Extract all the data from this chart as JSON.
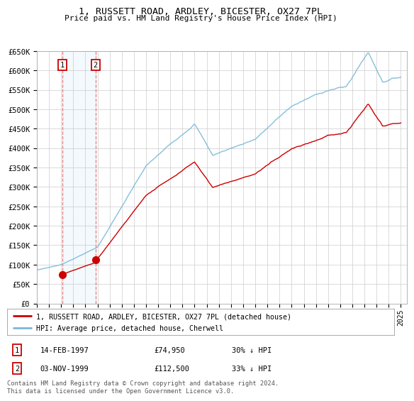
{
  "title": "1, RUSSETT ROAD, ARDLEY, BICESTER, OX27 7PL",
  "subtitle": "Price paid vs. HM Land Registry's House Price Index (HPI)",
  "legend_label_red": "1, RUSSETT ROAD, ARDLEY, BICESTER, OX27 7PL (detached house)",
  "legend_label_blue": "HPI: Average price, detached house, Cherwell",
  "sale1_date": "14-FEB-1997",
  "sale1_price": 74950,
  "sale1_x": 1997.12,
  "sale2_date": "03-NOV-1999",
  "sale2_price": 112500,
  "sale2_x": 1999.84,
  "table_row1": [
    "1",
    "14-FEB-1997",
    "£74,950",
    "30% ↓ HPI"
  ],
  "table_row2": [
    "2",
    "03-NOV-1999",
    "£112,500",
    "33% ↓ HPI"
  ],
  "footnote": "Contains HM Land Registry data © Crown copyright and database right 2024.\nThis data is licensed under the Open Government Licence v3.0.",
  "ylim": [
    0,
    650000
  ],
  "xlim": [
    1995.0,
    2025.5
  ],
  "yticks": [
    0,
    50000,
    100000,
    150000,
    200000,
    250000,
    300000,
    350000,
    400000,
    450000,
    500000,
    550000,
    600000,
    650000
  ],
  "ytick_labels": [
    "£0",
    "£50K",
    "£100K",
    "£150K",
    "£200K",
    "£250K",
    "£300K",
    "£350K",
    "£400K",
    "£450K",
    "£500K",
    "£550K",
    "£600K",
    "£650K"
  ],
  "hpi_color": "#7ab8d9",
  "price_color": "#cc0000",
  "bg_color": "#ffffff",
  "grid_color": "#cccccc",
  "sale_region_color": "#ddeef8",
  "dashed_color": "#e08080"
}
